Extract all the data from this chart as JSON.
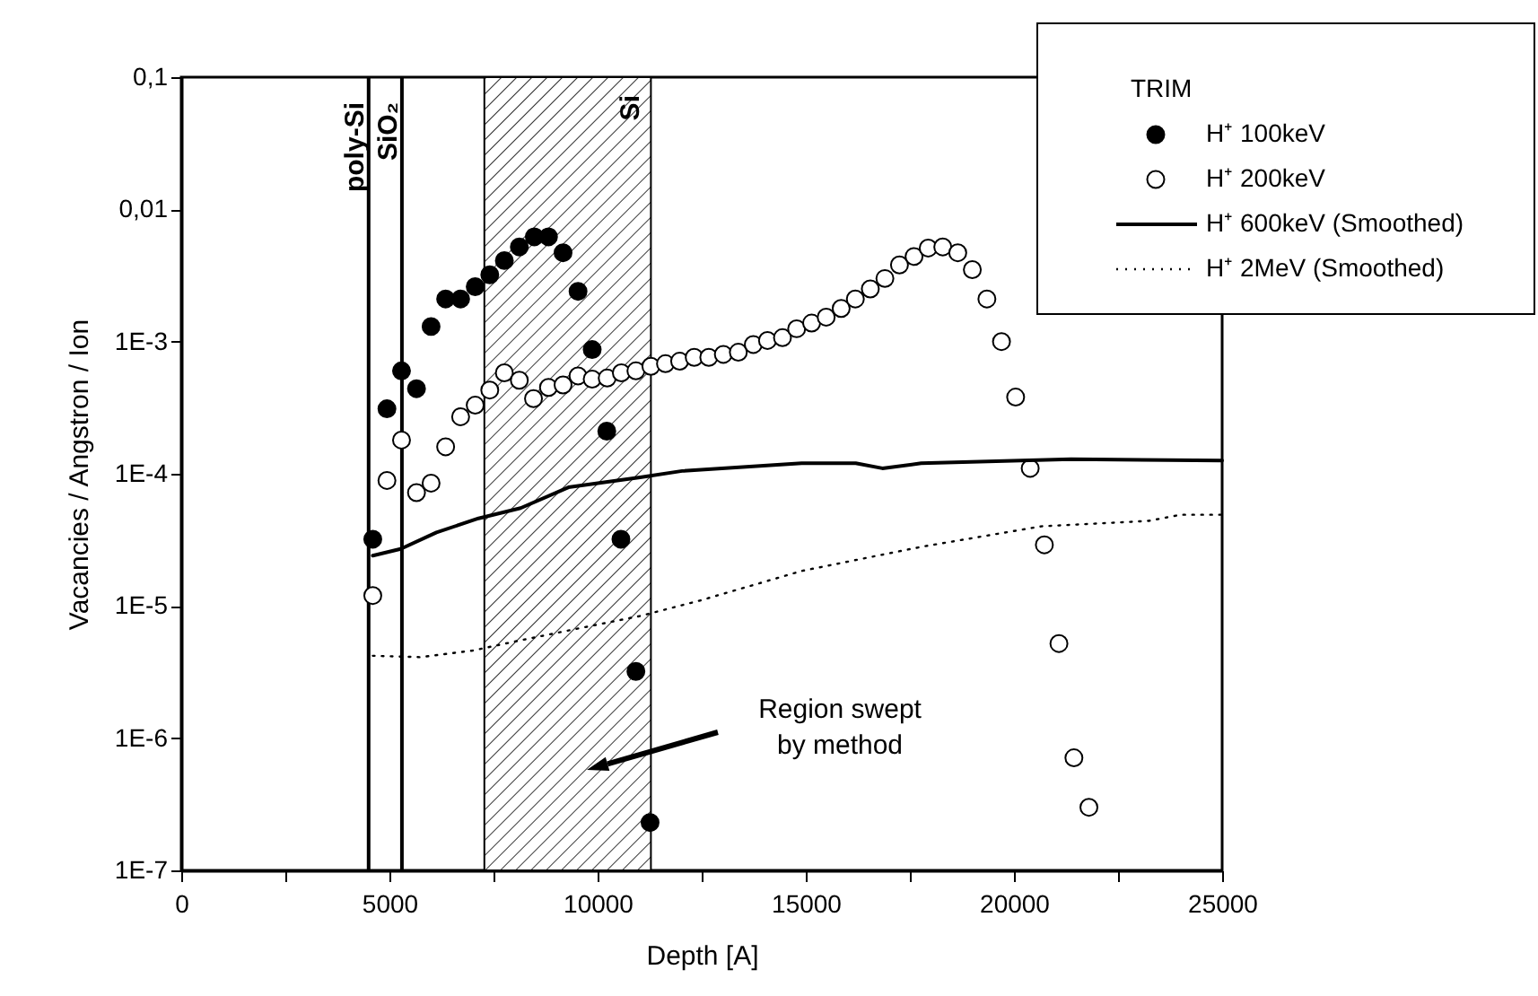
{
  "chart_data": {
    "type": "scatter",
    "xlabel": "Depth [A]",
    "ylabel": "Vacancies / Angstron / Ion",
    "legend_title": "TRIM",
    "legend": "top right",
    "log": "y",
    "grid": false,
    "xlim": [
      0,
      25000
    ],
    "xticks": [
      0,
      {
        "value": 2500,
        "label": null
      },
      5000,
      {
        "value": 7500,
        "label": null
      },
      10000,
      {
        "value": 12500,
        "label": null
      },
      15000,
      {
        "value": 17500,
        "label": null
      },
      20000,
      {
        "value": 22500,
        "label": null
      },
      25000
    ],
    "ylim": [
      1e-07,
      0.1
    ],
    "yticks": [
      {
        "value": 1e-07,
        "label": "1E-7"
      },
      {
        "value": 1e-06,
        "label": "1E-6"
      },
      {
        "value": 1e-05,
        "label": "1E-5"
      },
      {
        "value": 0.0001,
        "label": "1E-4"
      },
      {
        "value": 0.001,
        "label": "1E-3"
      },
      {
        "value": 0.01,
        "label": "0,01"
      },
      {
        "value": 0.1,
        "label": "0,1"
      }
    ],
    "series": [
      {
        "name": "H⁺ 100keV",
        "type": "scatter",
        "marker": "circle",
        "color": "#000000",
        "x": [
          4600,
          4940,
          5290,
          5650,
          6000,
          6350,
          6710,
          7060,
          7410,
          7760,
          8120,
          8480,
          8820,
          9170,
          9530,
          9870,
          10220,
          10560,
          10920,
          11260
        ],
        "values": [
          3.2e-05,
          0.00031,
          0.0006,
          0.00044,
          0.0013,
          0.0021,
          0.0021,
          0.0026,
          0.0032,
          0.0041,
          0.0052,
          0.0062,
          0.0062,
          0.0047,
          0.0024,
          0.00087,
          0.00021,
          3.2e-05,
          3.2e-06,
          2.3e-07
        ]
      },
      {
        "name": "H⁺ 200keV",
        "type": "scatter",
        "marker": "circle",
        "color": "#ffffff",
        "x": [
          4600,
          4940,
          5290,
          5650,
          6000,
          6350,
          6710,
          7060,
          7410,
          7760,
          8120,
          8460,
          8820,
          9170,
          9530,
          9870,
          10230,
          10570,
          10920,
          11280,
          11630,
          11970,
          12320,
          12670,
          13020,
          13380,
          13740,
          14080,
          14440,
          14780,
          15140,
          15490,
          15850,
          16190,
          16550,
          16900,
          17250,
          17600,
          17940,
          18290,
          18650,
          19000,
          19350,
          19700,
          20040,
          20390,
          20730,
          21080,
          21440,
          21800
        ],
        "values": [
          1.2e-05,
          8.9e-05,
          0.00018,
          7.2e-05,
          8.5e-05,
          0.00016,
          0.00027,
          0.00033,
          0.00043,
          0.00058,
          0.00051,
          0.00037,
          0.00045,
          0.00047,
          0.00055,
          0.00052,
          0.00053,
          0.00058,
          0.0006,
          0.00065,
          0.00068,
          0.00071,
          0.00076,
          0.00076,
          0.0008,
          0.00083,
          0.00095,
          0.00102,
          0.00107,
          0.00125,
          0.00138,
          0.00153,
          0.00178,
          0.0021,
          0.0025,
          0.003,
          0.0038,
          0.0044,
          0.0051,
          0.0052,
          0.0047,
          0.0035,
          0.0021,
          0.001,
          0.00038,
          0.00011,
          2.9e-05,
          5.2e-06,
          7.1e-07,
          3e-07
        ]
      },
      {
        "name": "H⁺ 600keV (Smoothed)",
        "type": "line",
        "line_style": "solid",
        "color": "#000000",
        "x": [
          4600,
          5270,
          6130,
          7140,
          8150,
          9300,
          11020,
          12030,
          14900,
          16200,
          16840,
          17770,
          21370,
          25000
        ],
        "values": [
          2.4e-05,
          2.7e-05,
          3.6e-05,
          4.6e-05,
          5.5e-05,
          7.9e-05,
          9.4e-05,
          0.000105,
          0.00012,
          0.00012,
          0.00011,
          0.00012,
          0.000129,
          0.000126
        ]
      },
      {
        "name": "H⁺ 2MeV (Smoothed)",
        "type": "line",
        "line_style": "dotted",
        "color": "#000000",
        "x": [
          4600,
          5750,
          7000,
          8150,
          9580,
          11020,
          12460,
          14900,
          17770,
          20650,
          23230,
          24000,
          25000
        ],
        "values": [
          4.2e-06,
          4.1e-06,
          4.6e-06,
          5.5e-06,
          6.8e-06,
          8.4e-06,
          1.1e-05,
          1.84e-05,
          2.8e-05,
          4e-05,
          4.4e-05,
          4.9e-05,
          4.9e-05
        ]
      }
    ],
    "ref_lines": [
      {
        "axis": "x",
        "value": 4500,
        "label": "poly-Si",
        "color": "#000000",
        "line_style": "solid"
      },
      {
        "axis": "x",
        "value": 5300,
        "label": "SiO₂",
        "color": "#000000",
        "line_style": "solid"
      }
    ],
    "bands": [
      {
        "axis": "x",
        "from": 7280,
        "to": 11280
      }
    ],
    "annotations": [
      "Si",
      "Region swept by method"
    ]
  }
}
